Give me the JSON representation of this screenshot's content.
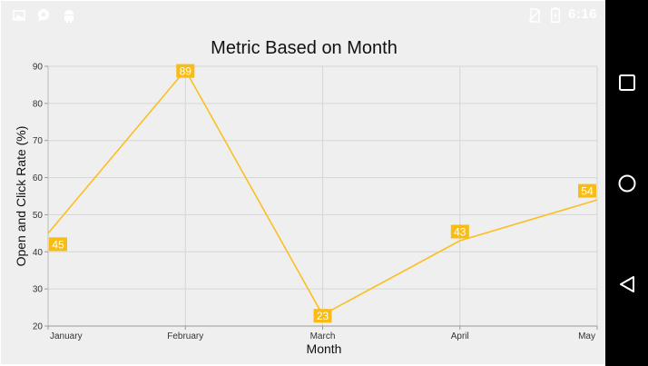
{
  "status_bar": {
    "time": "6:16",
    "icons": [
      "image-icon",
      "chat-bubble-icon",
      "android-icon",
      "no-sim-icon",
      "battery-charging-icon"
    ]
  },
  "nav_bar": {
    "buttons": [
      "recents-square-icon",
      "home-circle-icon",
      "back-triangle-icon"
    ]
  },
  "colors": {
    "series": "#fbbf24",
    "label_bg": "#f8bc14",
    "plot_bg": "#efefef",
    "grid": "#d6d6d6"
  },
  "chart_data": {
    "type": "line",
    "title": "Metric Based on Month",
    "xlabel": "Month",
    "ylabel": "Open and Click Rate (%)",
    "categories": [
      "January",
      "February",
      "March",
      "April",
      "May"
    ],
    "values": [
      45,
      89,
      23,
      43,
      54
    ],
    "ylim": [
      20,
      90
    ],
    "yticks": [
      "20",
      "30",
      "40",
      "50",
      "60",
      "70",
      "80",
      "90"
    ],
    "data_labels": [
      "45",
      "89",
      "23",
      "43",
      "54"
    ],
    "grid": true,
    "legend": "none"
  }
}
